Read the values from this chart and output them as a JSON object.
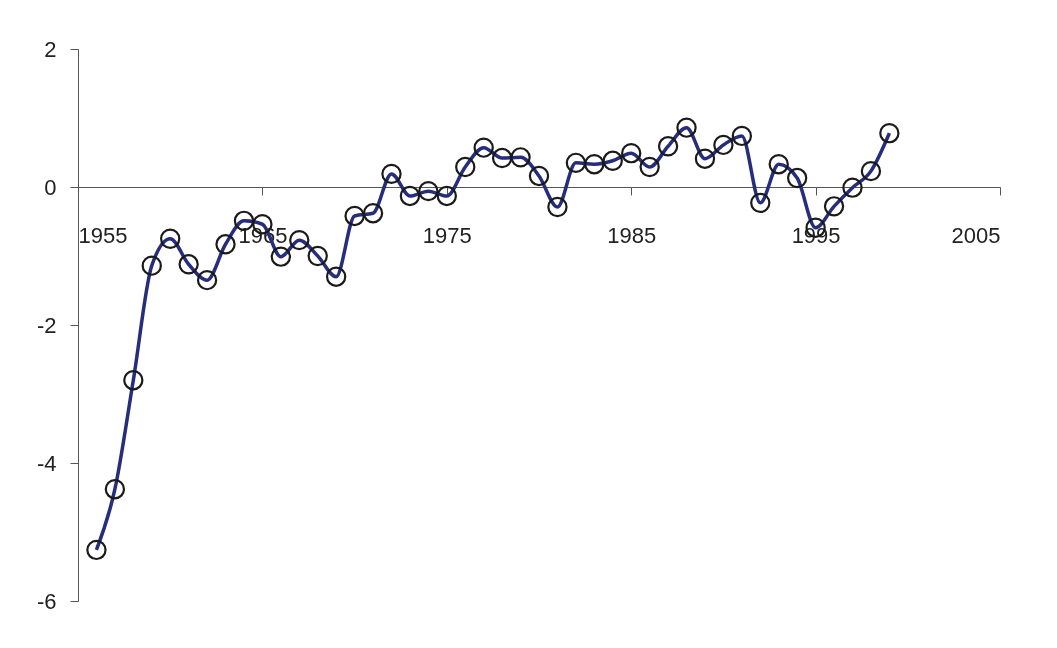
{
  "chart_data": {
    "type": "line",
    "x": [
      1956,
      1957,
      1958,
      1959,
      1960,
      1961,
      1962,
      1963,
      1964,
      1965,
      1966,
      1967,
      1968,
      1969,
      1970,
      1971,
      1972,
      1973,
      1974,
      1975,
      1976,
      1977,
      1978,
      1979,
      1980,
      1981,
      1982,
      1983,
      1984,
      1985,
      1986,
      1987,
      1988,
      1989,
      1990,
      1991,
      1992,
      1993,
      1994,
      1995,
      1996,
      1997,
      1998,
      1999
    ],
    "series": [
      {
        "color": "#262d7d",
        "values": [
          -5.26,
          -4.38,
          -2.8,
          -1.14,
          -0.75,
          -1.12,
          -1.35,
          -0.83,
          -0.49,
          -0.54,
          -1.01,
          -0.77,
          -1.0,
          -1.3,
          -0.42,
          -0.38,
          0.19,
          -0.13,
          -0.06,
          -0.13,
          0.29,
          0.57,
          0.42,
          0.43,
          0.16,
          -0.29,
          0.35,
          0.33,
          0.38,
          0.49,
          0.29,
          0.59,
          0.86,
          0.41,
          0.61,
          0.74,
          -0.23,
          0.33,
          0.13,
          -0.59,
          -0.28,
          -0.01,
          0.23,
          0.78
        ]
      }
    ],
    "xlim": [
      1955,
      2005
    ],
    "xticks": [
      1955,
      1965,
      1975,
      1985,
      1995,
      2005
    ],
    "ylim": [
      -6,
      2
    ],
    "yticks": [
      -6,
      -4,
      -2,
      0,
      2
    ],
    "grid": false,
    "marker": "circle",
    "line_style": "solid"
  }
}
